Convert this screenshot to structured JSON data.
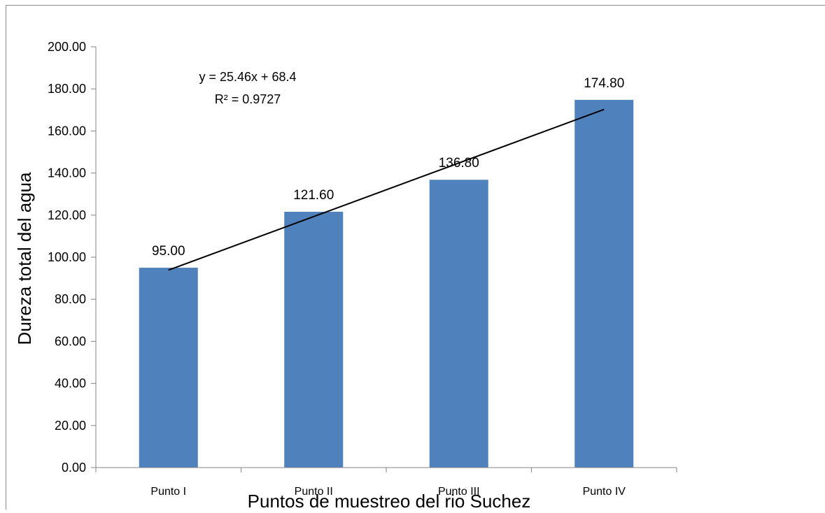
{
  "chart_data": {
    "type": "bar",
    "categories": [
      "Punto I",
      "Punto II",
      "Punto III",
      "Punto IV"
    ],
    "series": [
      {
        "values": [
          95.0,
          121.6,
          136.8,
          174.8
        ],
        "color": "#4F81BD"
      }
    ],
    "data_labels": [
      "95.00",
      "121.60",
      "136.80",
      "174.80"
    ],
    "ylim": [
      0,
      200
    ],
    "y_ticks": [
      "0.00",
      "20.00",
      "40.00",
      "60.00",
      "80.00",
      "100.00",
      "120.00",
      "140.00",
      "160.00",
      "180.00",
      "200.00"
    ],
    "xlabel": "Puntos de muestreo del rio Suchez",
    "ylabel": "Dureza total del agua",
    "trendline": {
      "type": "linear",
      "slope": 25.46,
      "intercept": 68.4,
      "equation": "y = 25.46x + 68.4",
      "r_squared": "R² = 0.9727",
      "color": "#000000"
    },
    "grid": false,
    "legend": "none"
  }
}
